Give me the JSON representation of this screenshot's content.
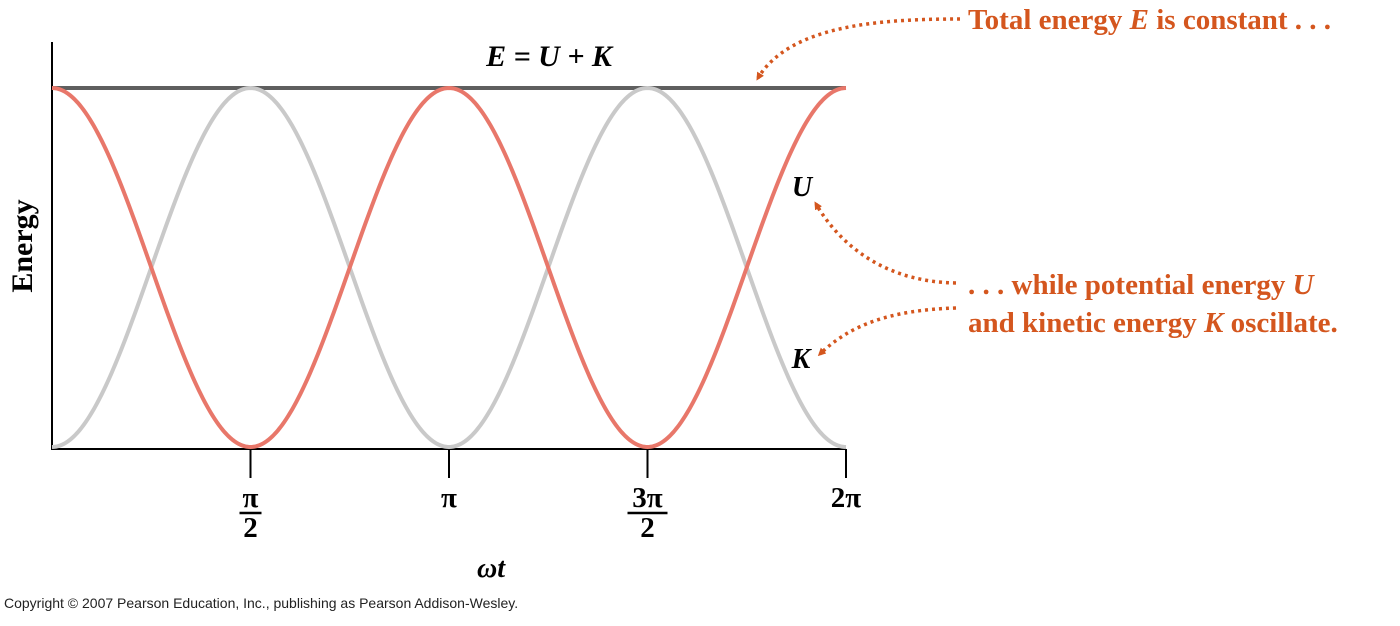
{
  "chart_data": {
    "type": "line",
    "xlabel": "ωt",
    "ylabel": "Energy",
    "xlim": [
      0,
      6.2832
    ],
    "ylim": [
      0,
      1
    ],
    "x_ticks": [
      {
        "value": 1.5708,
        "num": "π",
        "den": "2"
      },
      {
        "value": 3.1416,
        "label": "π"
      },
      {
        "value": 4.7124,
        "num": "3π",
        "den": "2"
      },
      {
        "value": 6.2832,
        "label": "2π"
      }
    ],
    "series": [
      {
        "name": "E = U + K",
        "function": "1",
        "values_at_ticks": [
          1,
          1,
          1,
          1,
          1
        ],
        "color": "#5f5f5f"
      },
      {
        "name": "U",
        "function": "cos²(ωt)",
        "values_at_ticks": [
          1,
          0,
          1,
          0,
          1
        ],
        "color": "#e8776a"
      },
      {
        "name": "K",
        "function": "sin²(ωt)",
        "values_at_ticks": [
          0,
          1,
          0,
          1,
          0
        ],
        "color": "#c9c9c9"
      }
    ],
    "sample_x": [
      0,
      1.5708,
      3.1416,
      4.7124,
      6.2832
    ],
    "grid": false
  },
  "labels": {
    "total_line": "E = U + K",
    "u_label": "U",
    "k_label": "K"
  },
  "annotations": {
    "total": {
      "prefix": "Total energy ",
      "var": "E",
      "suffix": " is constant . . ."
    },
    "oscillate_line1": {
      "prefix": ". . . while potential energy ",
      "var": "U"
    },
    "oscillate_line2": {
      "prefix": "and kinetic energy ",
      "var": "K",
      "suffix": " oscillate."
    }
  },
  "colors": {
    "annotation": "#d4561e",
    "axis": "#000000",
    "total_line": "#5f5f5f",
    "u_curve": "#e8776a",
    "k_curve": "#c9c9c9"
  },
  "copyright": "Copyright © 2007 Pearson Education, Inc., publishing as Pearson Addison-Wesley."
}
